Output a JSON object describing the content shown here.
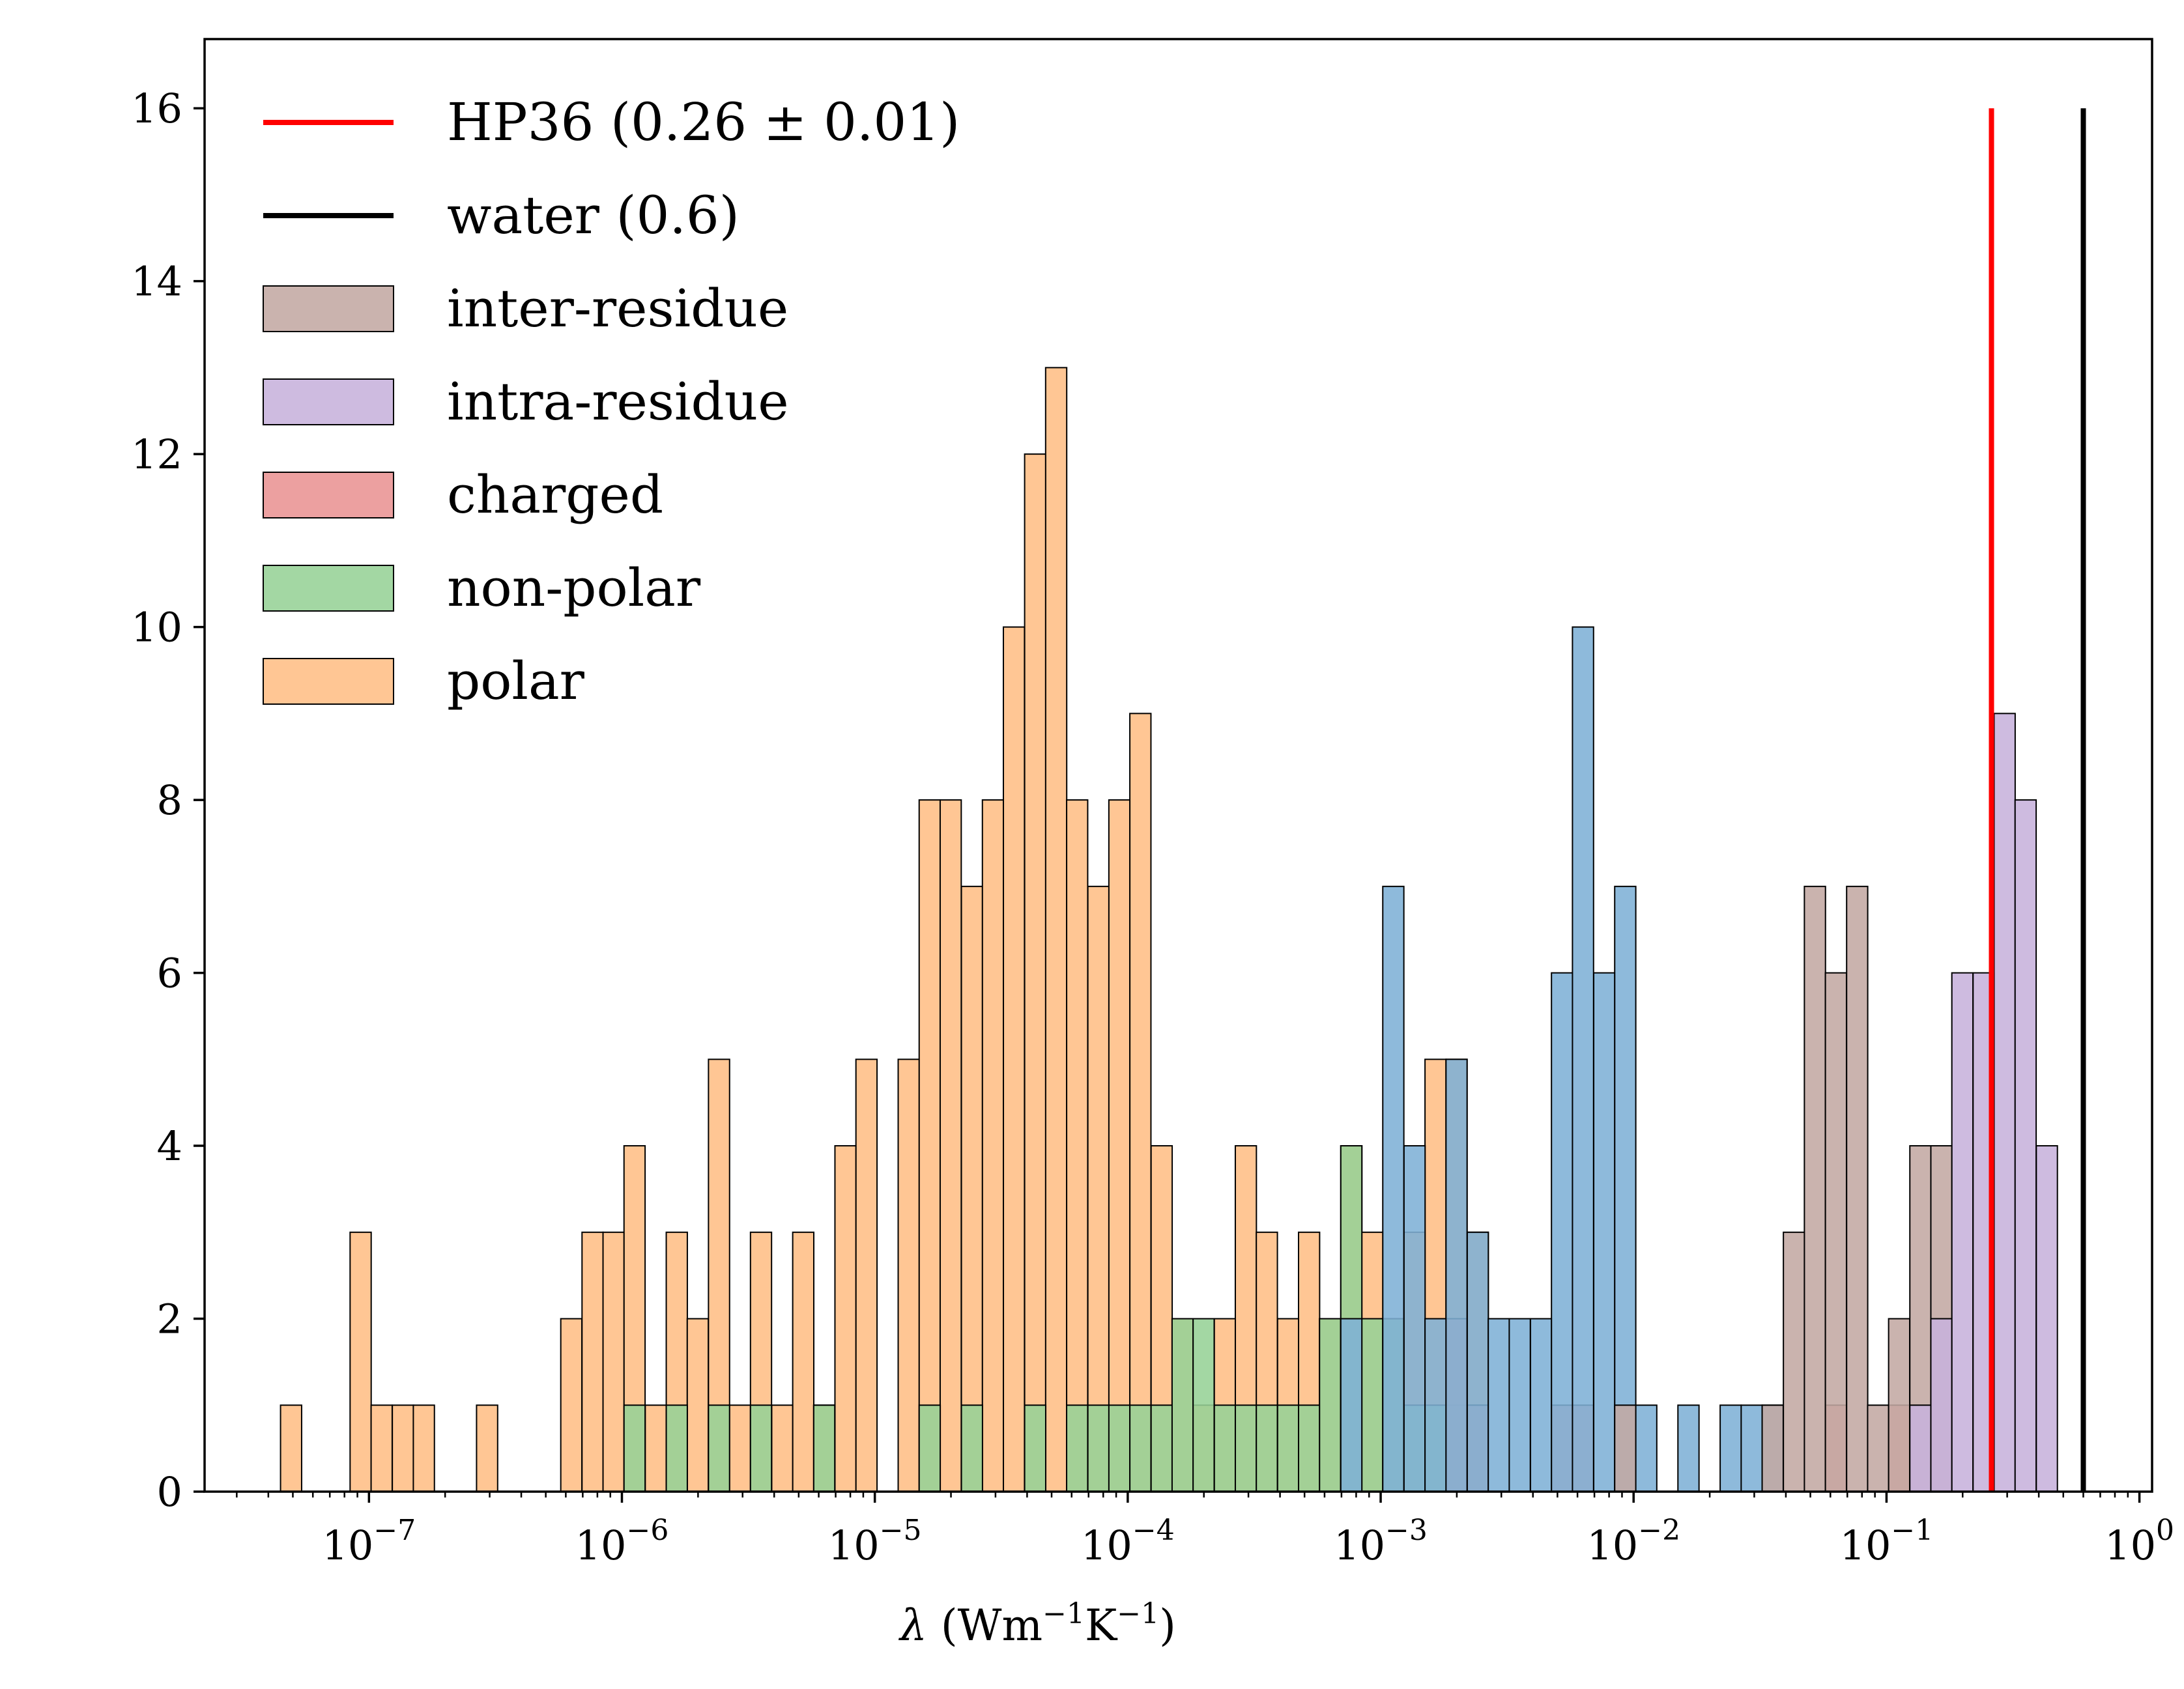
{
  "chart_data": {
    "type": "bar",
    "title": "",
    "xlabel": "λ (Wm⁻¹K⁻¹)",
    "xlabel_parts": {
      "symbol": "λ",
      "open": " (Wm",
      "exp1": "−1",
      "mid": "K",
      "exp2": "−1",
      "close": ")"
    },
    "x_scale": "log",
    "x_range_log10": [
      -7.65,
      0.05
    ],
    "ylim": [
      0,
      16.8
    ],
    "y_ticks": [
      0,
      2,
      4,
      6,
      8,
      10,
      12,
      14,
      16
    ],
    "x_ticks": [
      {
        "base": "10",
        "exp": "−7",
        "log": -7
      },
      {
        "base": "10",
        "exp": "−6",
        "log": -6
      },
      {
        "base": "10",
        "exp": "−5",
        "log": -5
      },
      {
        "base": "10",
        "exp": "−4",
        "log": -4
      },
      {
        "base": "10",
        "exp": "−3",
        "log": -3
      },
      {
        "base": "10",
        "exp": "−2",
        "log": -2
      },
      {
        "base": "10",
        "exp": "−1",
        "log": -1
      },
      {
        "base": "10",
        "exp": "0",
        "log": 0
      }
    ],
    "grid": false,
    "legend_position": "top-left",
    "bin_width_log10": 0.0834,
    "series": [
      {
        "name": "polar",
        "color": "#ffbe85",
        "bins": [
          [
            -7.308,
            1
          ],
          [
            -7.033,
            3
          ],
          [
            -6.95,
            1
          ],
          [
            -6.866,
            1
          ],
          [
            -6.783,
            1
          ],
          [
            -6.533,
            1
          ],
          [
            -6.2,
            2
          ],
          [
            -6.116,
            3
          ],
          [
            -6.033,
            3
          ],
          [
            -5.95,
            4
          ],
          [
            -5.866,
            1
          ],
          [
            -5.783,
            3
          ],
          [
            -5.7,
            2
          ],
          [
            -5.616,
            5
          ],
          [
            -5.533,
            1
          ],
          [
            -5.45,
            3
          ],
          [
            -5.366,
            1
          ],
          [
            -5.283,
            3
          ],
          [
            -5.2,
            1
          ],
          [
            -5.116,
            4
          ],
          [
            -5.033,
            5
          ],
          [
            -4.866,
            5
          ],
          [
            -4.783,
            8
          ],
          [
            -4.7,
            8
          ],
          [
            -4.616,
            7
          ],
          [
            -4.533,
            8
          ],
          [
            -4.45,
            10
          ],
          [
            -4.366,
            12
          ],
          [
            -4.283,
            13
          ],
          [
            -4.2,
            8
          ],
          [
            -4.116,
            7
          ],
          [
            -4.033,
            8
          ],
          [
            -3.95,
            9
          ],
          [
            -3.866,
            4
          ],
          [
            -3.783,
            2
          ],
          [
            -3.7,
            1
          ],
          [
            -3.616,
            2
          ],
          [
            -3.533,
            4
          ],
          [
            -3.45,
            3
          ],
          [
            -3.366,
            2
          ],
          [
            -3.283,
            3
          ],
          [
            -3.2,
            2
          ],
          [
            -3.116,
            4
          ],
          [
            -3.033,
            3
          ],
          [
            -2.95,
            2
          ],
          [
            -2.866,
            3
          ],
          [
            -2.783,
            5
          ],
          [
            -2.7,
            5
          ],
          [
            -2.616,
            3
          ]
        ]
      },
      {
        "name": "non-polar",
        "color": "#96d196",
        "bins": [
          [
            -5.95,
            1
          ],
          [
            -5.783,
            1
          ],
          [
            -5.616,
            1
          ],
          [
            -5.45,
            1
          ],
          [
            -5.2,
            1
          ],
          [
            -4.783,
            1
          ],
          [
            -4.616,
            1
          ],
          [
            -4.366,
            1
          ],
          [
            -4.2,
            1
          ],
          [
            -4.116,
            1
          ],
          [
            -4.033,
            1
          ],
          [
            -3.95,
            1
          ],
          [
            -3.866,
            1
          ],
          [
            -3.783,
            2
          ],
          [
            -3.7,
            2
          ],
          [
            -3.616,
            1
          ],
          [
            -3.533,
            1
          ],
          [
            -3.45,
            1
          ],
          [
            -3.366,
            1
          ],
          [
            -3.283,
            1
          ],
          [
            -3.2,
            2
          ],
          [
            -3.116,
            4
          ],
          [
            -3.033,
            2
          ],
          [
            -2.95,
            2
          ],
          [
            -2.866,
            1
          ],
          [
            -2.783,
            1
          ],
          [
            -2.7,
            1
          ],
          [
            -2.616,
            1
          ]
        ]
      },
      {
        "name": "charged",
        "color": "#e99393",
        "bins": [
          [
            -2.7,
            2
          ],
          [
            -2.616,
            1
          ],
          [
            -2.283,
            1
          ],
          [
            -2.2,
            1
          ],
          [
            -1.2,
            1
          ],
          [
            -0.95,
            1
          ]
        ]
      },
      {
        "name": "",
        "color": "#7eb1d6",
        "bins": [
          [
            -3.116,
            2
          ],
          [
            -2.95,
            7
          ],
          [
            -2.866,
            4
          ],
          [
            -2.783,
            2
          ],
          [
            -2.7,
            5
          ],
          [
            -2.616,
            3
          ],
          [
            -2.533,
            2
          ],
          [
            -2.45,
            2
          ],
          [
            -2.366,
            2
          ],
          [
            -2.283,
            6
          ],
          [
            -2.2,
            10
          ],
          [
            -2.116,
            6
          ],
          [
            -2.033,
            7
          ],
          [
            -1.95,
            1
          ],
          [
            -1.783,
            1
          ],
          [
            -1.616,
            1
          ],
          [
            -1.533,
            1
          ],
          [
            -1.45,
            1
          ]
        ]
      },
      {
        "name": "inter-residue",
        "color": "#c3a9a3",
        "bins": [
          [
            -2.033,
            1
          ],
          [
            -1.45,
            1
          ],
          [
            -1.366,
            3
          ],
          [
            -1.283,
            7
          ],
          [
            -1.2,
            6
          ],
          [
            -1.116,
            7
          ],
          [
            -1.033,
            1
          ],
          [
            -0.95,
            2
          ],
          [
            -0.866,
            4
          ],
          [
            -0.783,
            4
          ]
        ]
      },
      {
        "name": "intra-residue",
        "color": "#c7b2dc",
        "bins": [
          [
            -0.866,
            1
          ],
          [
            -0.783,
            2
          ],
          [
            -0.7,
            6
          ],
          [
            -0.616,
            6
          ],
          [
            -0.533,
            9
          ],
          [
            -0.45,
            8
          ],
          [
            -0.366,
            4
          ]
        ]
      }
    ],
    "reference_lines": [
      {
        "name": "HP36",
        "label": "HP36 (0.26 ± 0.01)",
        "value": 0.26,
        "color": "#ff0000",
        "top": 16
      },
      {
        "name": "water",
        "label": "water (0.6)",
        "value": 0.6,
        "color": "#000000",
        "top": 16
      }
    ],
    "legend": [
      {
        "kind": "line",
        "label": "HP36 (0.26 ± 0.01)",
        "color": "#ff0000"
      },
      {
        "kind": "line",
        "label": "water (0.6)",
        "color": "#000000"
      },
      {
        "kind": "patch",
        "label": "inter-residue",
        "color": "#c3a9a3"
      },
      {
        "kind": "patch",
        "label": "intra-residue",
        "color": "#c7b2dc"
      },
      {
        "kind": "patch",
        "label": "charged",
        "color": "#e99393"
      },
      {
        "kind": "patch",
        "label": "non-polar",
        "color": "#96d196"
      },
      {
        "kind": "patch",
        "label": "polar",
        "color": "#ffbe85"
      }
    ]
  }
}
